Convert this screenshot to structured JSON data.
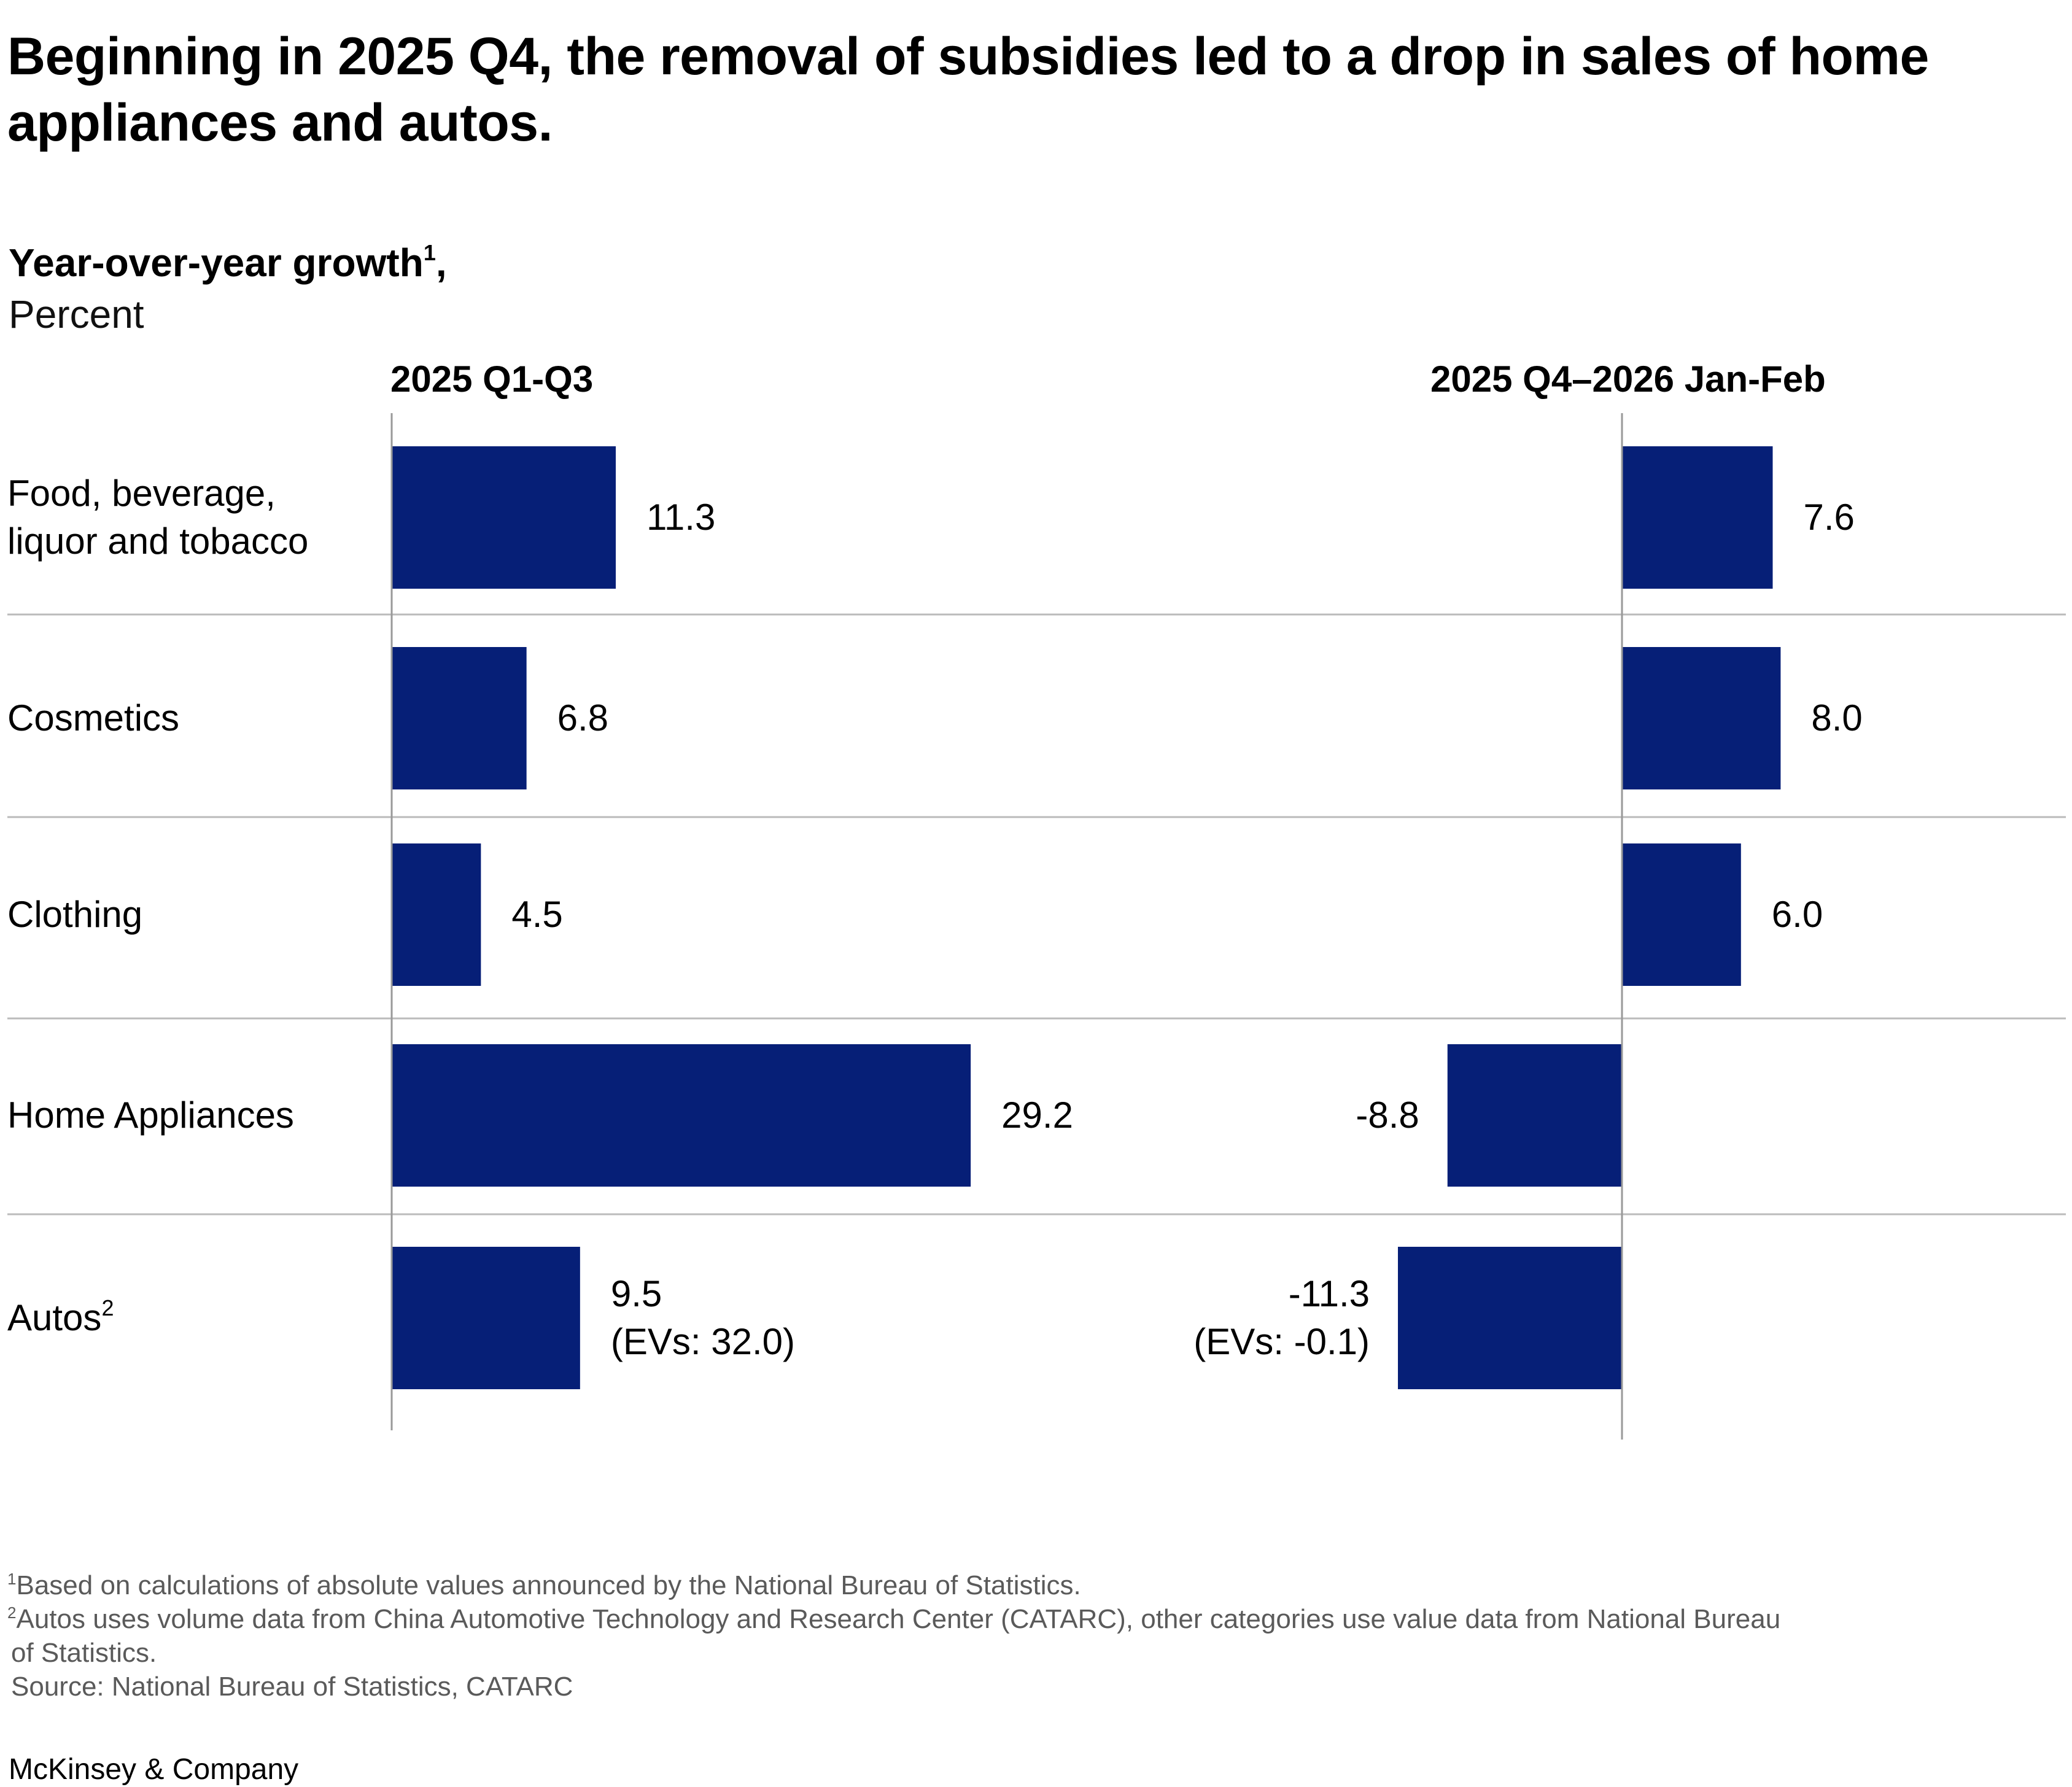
{
  "title": "Beginning in 2025 Q4, the removal of subsidies led to a drop in sales of home appliances and autos.",
  "subtitle": {
    "measure": "Year-over-year growth",
    "measure_footnote": "1",
    "measure_suffix": ",",
    "unit": "Percent"
  },
  "colors": {
    "bar": "#061F77",
    "gridline": "#BBBBBB",
    "axis": "#999999",
    "footnote_text": "#5A5A5A"
  },
  "chart_data": {
    "type": "bar",
    "orientation": "horizontal",
    "title": "Beginning in 2025 Q4, the removal of subsidies led to a drop in sales of home appliances and autos.",
    "xlabel": "Year-over-year growth, Percent",
    "ylabel": "",
    "grid": true,
    "legend": "none",
    "categories": [
      {
        "label": "Food, beverage, liquor and tobacco",
        "lines": [
          "Food, beverage,",
          "liquor and tobacco"
        ],
        "footnote": ""
      },
      {
        "label": "Cosmetics",
        "lines": [
          "Cosmetics"
        ],
        "footnote": ""
      },
      {
        "label": "Clothing",
        "lines": [
          "Clothing"
        ],
        "footnote": ""
      },
      {
        "label": "Home Appliances",
        "lines": [
          "Home Appliances"
        ],
        "footnote": ""
      },
      {
        "label": "Autos",
        "lines": [
          "Autos"
        ],
        "footnote": "2"
      }
    ],
    "series": [
      {
        "name": "2025 Q1-Q3",
        "values": [
          11.3,
          6.8,
          4.5,
          29.2,
          9.5
        ],
        "labels": [
          "11.3",
          "6.8",
          "4.5",
          "29.2",
          "9.5"
        ],
        "notes": [
          "",
          "",
          "",
          "",
          "(EVs: 32.0)"
        ]
      },
      {
        "name": "2025 Q4–2026 Jan-Feb",
        "values": [
          7.6,
          8.0,
          6.0,
          -8.8,
          -11.3
        ],
        "labels": [
          "7.6",
          "8.0",
          "6.0",
          "-8.8",
          "-11.3"
        ],
        "notes": [
          "",
          "",
          "",
          "",
          "(EVs: -0.1)"
        ]
      }
    ],
    "annotations": {
      "ev_growth": {
        "2025 Q1-Q3": 32.0,
        "2025 Q4–2026 Jan-Feb": -0.1
      }
    }
  },
  "footnotes": [
    {
      "mark": "1",
      "text": "Based on calculations of absolute values announced by the National Bureau of Statistics."
    },
    {
      "mark": "2",
      "text": "Autos uses volume data from China Automotive Technology and Research Center (CATARC), other categories use value data from National Bureau"
    },
    {
      "mark": "",
      "text": " of Statistics."
    },
    {
      "mark": "",
      "text": " Source: National Bureau of Statistics, CATARC"
    }
  ],
  "brand": "McKinsey & Company"
}
